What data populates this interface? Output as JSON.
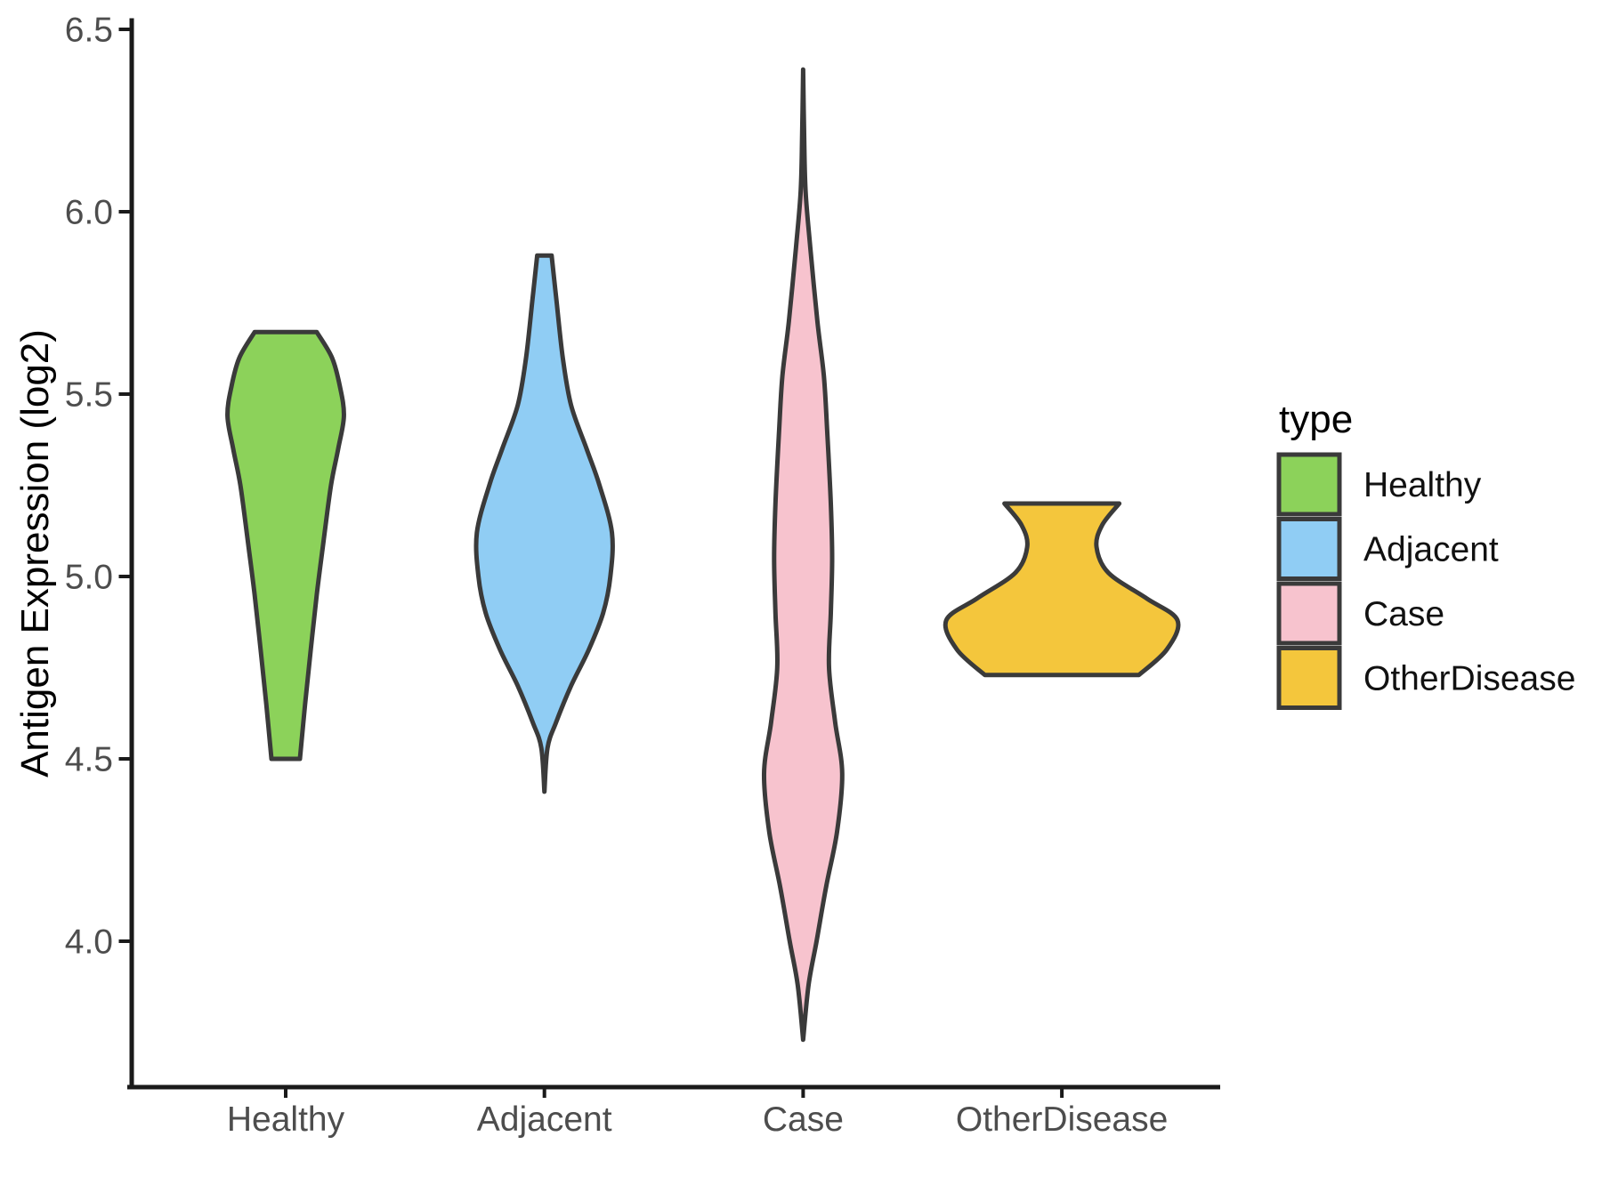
{
  "figure": {
    "background": "#FFFFFF"
  },
  "chart_data": {
    "type": "violin",
    "title": "",
    "xlabel": "",
    "ylabel": "Antigen Expression (log2)",
    "categories": [
      "Healthy",
      "Adjacent",
      "Case",
      "OtherDisease"
    ],
    "y_axis": {
      "tick_labels": [
        "6.5",
        "6.0",
        "5.5",
        "5.0",
        "4.5",
        "4.0"
      ],
      "tick_values": [
        6.5,
        6.0,
        5.5,
        5.0,
        4.5,
        4.0
      ],
      "range": [
        3.6,
        6.52
      ],
      "grid": false
    },
    "legend": {
      "title": "type",
      "position": "right",
      "entries": [
        {
          "label": "Healthy",
          "color": "#8CD25A"
        },
        {
          "label": "Adjacent",
          "color": "#90CDF4"
        },
        {
          "label": "Case",
          "color": "#F7C3CE"
        },
        {
          "label": "OtherDisease",
          "color": "#F4C63C"
        }
      ]
    },
    "style": {
      "outline_color": "#3A3A3A",
      "axis_color": "#1A1A1A",
      "tick_text_color": "#4D4D4D",
      "label_text_color": "#000000"
    },
    "violins": [
      {
        "group": "Healthy",
        "color": "#8CD25A",
        "min": 4.5,
        "max": 5.67,
        "widest_at": 5.44,
        "profile": [
          [
            5.67,
            0.12
          ],
          [
            5.6,
            0.179
          ],
          [
            5.52,
            0.21
          ],
          [
            5.44,
            0.225
          ],
          [
            5.35,
            0.203
          ],
          [
            5.25,
            0.175
          ],
          [
            5.1,
            0.147
          ],
          [
            4.95,
            0.12
          ],
          [
            4.8,
            0.097
          ],
          [
            4.65,
            0.075
          ],
          [
            4.5,
            0.055
          ]
        ]
      },
      {
        "group": "Adjacent",
        "color": "#90CDF4",
        "min": 4.41,
        "max": 5.88,
        "widest_at": 5.12,
        "profile": [
          [
            5.88,
            0.028
          ],
          [
            5.76,
            0.046
          ],
          [
            5.6,
            0.071
          ],
          [
            5.47,
            0.103
          ],
          [
            5.35,
            0.163
          ],
          [
            5.25,
            0.213
          ],
          [
            5.12,
            0.261
          ],
          [
            5.0,
            0.255
          ],
          [
            4.9,
            0.227
          ],
          [
            4.8,
            0.172
          ],
          [
            4.7,
            0.103
          ],
          [
            4.6,
            0.045
          ],
          [
            4.53,
            0.012
          ],
          [
            4.41,
            0.0
          ]
        ]
      },
      {
        "group": "Case",
        "color": "#F7C3CE",
        "min": 3.73,
        "max": 6.39,
        "widest_at": 4.46,
        "profile": [
          [
            6.39,
            0.0
          ],
          [
            6.2,
            0.004
          ],
          [
            6.05,
            0.01
          ],
          [
            5.9,
            0.028
          ],
          [
            5.7,
            0.055
          ],
          [
            5.55,
            0.08
          ],
          [
            5.4,
            0.093
          ],
          [
            5.2,
            0.107
          ],
          [
            5.05,
            0.112
          ],
          [
            4.9,
            0.107
          ],
          [
            4.75,
            0.1
          ],
          [
            4.6,
            0.124
          ],
          [
            4.46,
            0.151
          ],
          [
            4.3,
            0.131
          ],
          [
            4.15,
            0.089
          ],
          [
            4.0,
            0.052
          ],
          [
            3.88,
            0.021
          ],
          [
            3.73,
            0.0
          ]
        ]
      },
      {
        "group": "OtherDisease",
        "color": "#F4C63C",
        "min": 4.73,
        "max": 5.2,
        "widest_at": 4.88,
        "profile": [
          [
            5.2,
            0.222
          ],
          [
            5.14,
            0.155
          ],
          [
            5.08,
            0.134
          ],
          [
            5.01,
            0.18
          ],
          [
            4.94,
            0.327
          ],
          [
            4.88,
            0.447
          ],
          [
            4.8,
            0.406
          ],
          [
            4.73,
            0.298
          ]
        ]
      }
    ]
  }
}
